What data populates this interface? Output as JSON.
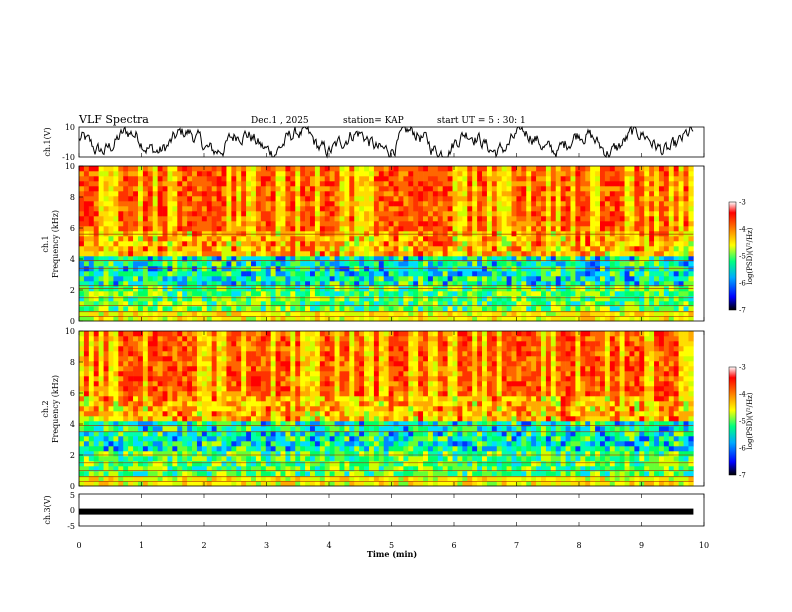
{
  "header": {
    "title": "VLF Spectra",
    "date": "Dec.1 , 2025",
    "station": "station= KAP",
    "start": "start UT = 5 : 30: 1"
  },
  "chart_data": [
    {
      "type": "line",
      "name": "ch1-waveform",
      "ylabel": "ch.1(V)",
      "ylim": [
        -10,
        10
      ],
      "yticks": [
        "10",
        "-10"
      ],
      "xlim": [
        0,
        10
      ],
      "data_end_min": 9.83,
      "color": "#000000",
      "description_values": {
        "mean": 0,
        "amplitude_approx": 5
      }
    },
    {
      "type": "heatmap",
      "name": "ch1-spectrogram",
      "ylabel_line1": "ch.1",
      "ylabel_line2": "Frequency (kHz)",
      "ylim": [
        0,
        10
      ],
      "yticks": [
        "0",
        "2",
        "4",
        "6",
        "8",
        "10"
      ],
      "xlim": [
        0,
        10
      ],
      "data_end_min": 9.83,
      "colorbar": {
        "label": "log(PSD)(V²/Hz)",
        "ticks": [
          "-3",
          "-4",
          "-5",
          "-6",
          "-7"
        ],
        "range": [
          -7,
          -3
        ],
        "colors": [
          "#000000",
          "#0000ff",
          "#00aaff",
          "#00ff80",
          "#ffff00",
          "#ff8000",
          "#ff0000",
          "#ffffff"
        ]
      },
      "lines_khz": [
        0.3,
        0.6,
        1.0,
        1.5,
        2.1,
        2.3,
        3.4,
        3.9,
        5.6
      ]
    },
    {
      "type": "heatmap",
      "name": "ch2-spectrogram",
      "ylabel_line1": "ch.2",
      "ylabel_line2": "Frequency (kHz)",
      "ylim": [
        0,
        10
      ],
      "yticks": [
        "0",
        "2",
        "4",
        "6",
        "8",
        "10"
      ],
      "xlim": [
        0,
        10
      ],
      "data_end_min": 9.83,
      "colorbar": {
        "label": "log(PSD)(V²/Hz)",
        "ticks": [
          "-3",
          "-4",
          "-5",
          "-6",
          "-7"
        ],
        "range": [
          -7,
          -3
        ],
        "colors": [
          "#000000",
          "#0000ff",
          "#00aaff",
          "#00ff80",
          "#ffff00",
          "#ff8000",
          "#ff0000",
          "#ffffff"
        ]
      },
      "lines_khz": [
        0.3,
        0.6,
        1.0,
        1.5,
        2.0,
        3.5,
        3.9
      ]
    },
    {
      "type": "line",
      "name": "ch3-waveform",
      "ylabel": "ch.3(V)",
      "ylim": [
        -5,
        5
      ],
      "yticks": [
        "5",
        "0",
        "-5"
      ],
      "xlim": [
        0,
        10
      ],
      "data_end_min": 9.83,
      "level_v": -0.5,
      "color": "#000000",
      "xlabel": "Time (min)",
      "xticks": [
        "0",
        "1",
        "2",
        "3",
        "4",
        "5",
        "6",
        "7",
        "8",
        "9",
        "10"
      ]
    }
  ]
}
